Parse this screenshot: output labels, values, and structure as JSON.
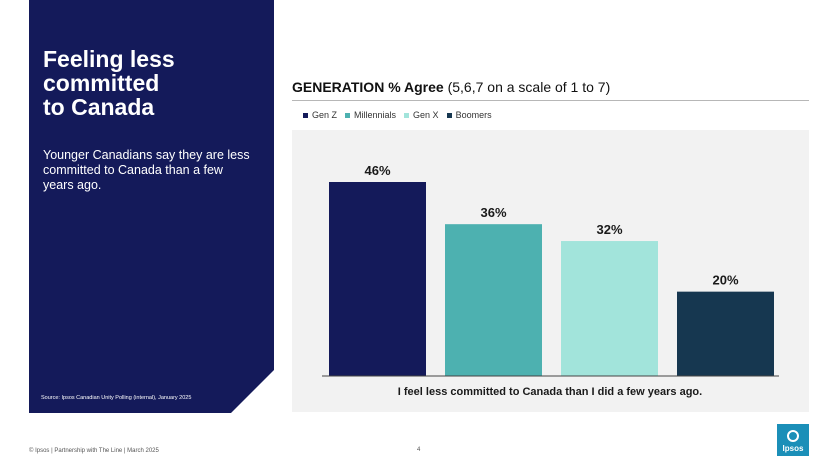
{
  "panel": {
    "title": "Feeling less\ncommitted\nto Canada",
    "body": "Younger Canadians say they are less committed to Canada than a few years ago.",
    "source": "Source:  Ipsos Canadian Unity Polling (internal), January 2025"
  },
  "heading": {
    "bold": "GENERATION % Agree",
    "rest": " (5,6,7 on a scale of 1 to 7)"
  },
  "footer": {
    "left": "© Ipsos | Partnership with The Line | March 2025",
    "page": "4"
  },
  "logo": {
    "text": "Ipsos"
  },
  "chart_data": {
    "type": "bar",
    "title": "GENERATION % Agree (5,6,7 on a scale of 1 to 7)",
    "categories": [
      "I feel less committed to Canada than I did a few years ago."
    ],
    "series": [
      {
        "name": "Gen Z",
        "values": [
          46
        ],
        "color": "#141a5a"
      },
      {
        "name": "Millennials",
        "values": [
          36
        ],
        "color": "#4db1b0"
      },
      {
        "name": "Gen X",
        "values": [
          32
        ],
        "color": "#a2e4db"
      },
      {
        "name": "Boomers",
        "values": [
          20
        ],
        "color": "#163750"
      }
    ],
    "data_labels": [
      "46%",
      "36%",
      "32%",
      "20%"
    ],
    "ylim": [
      0,
      50
    ],
    "grid": false,
    "legend": "top-left"
  }
}
